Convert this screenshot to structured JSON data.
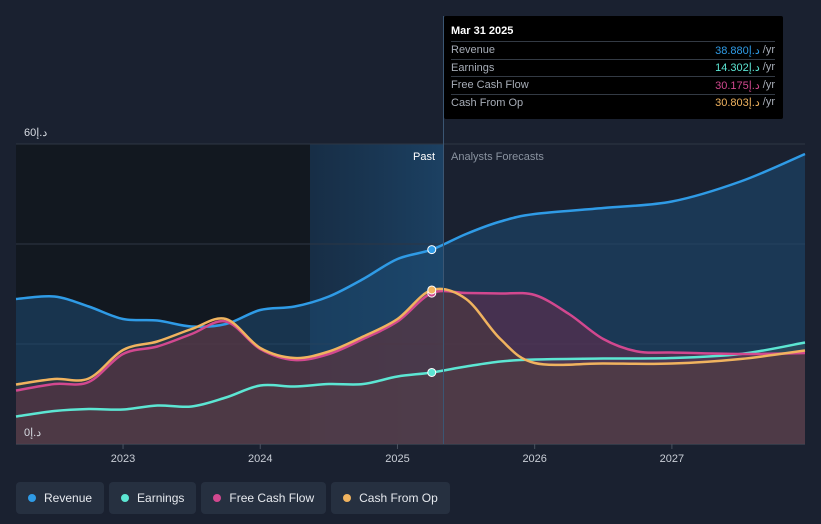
{
  "chart_data": {
    "type": "area",
    "title": "",
    "y_axis": {
      "max_label": "60د.إ",
      "min_label": "0د.إ",
      "ylim": [
        0,
        60
      ]
    },
    "x_axis": {
      "ticks": [
        "2023",
        "2024",
        "2025",
        "2026",
        "2027"
      ],
      "xlim": [
        2022.22,
        2027.97
      ]
    },
    "past_start": 2024.23,
    "divider_x": 2025.25,
    "labels": {
      "past": "Past",
      "forecast": "Analysts Forecasts"
    },
    "series": [
      {
        "name": "Revenue",
        "color": "#2f9be6",
        "points": [
          [
            2022.22,
            29
          ],
          [
            2022.5,
            29.5
          ],
          [
            2022.75,
            27.5
          ],
          [
            2023.0,
            25
          ],
          [
            2023.25,
            24.7
          ],
          [
            2023.5,
            23.5
          ],
          [
            2023.75,
            24
          ],
          [
            2024.0,
            26.8
          ],
          [
            2024.25,
            27.5
          ],
          [
            2024.5,
            29.5
          ],
          [
            2024.75,
            33
          ],
          [
            2025.0,
            37
          ],
          [
            2025.25,
            38.88
          ],
          [
            2025.5,
            42
          ],
          [
            2025.75,
            44.5
          ],
          [
            2026.0,
            46
          ],
          [
            2026.5,
            47.2
          ],
          [
            2027.0,
            48.5
          ],
          [
            2027.5,
            52.5
          ],
          [
            2027.97,
            58
          ]
        ]
      },
      {
        "name": "Earnings",
        "color": "#5ce6d3",
        "points": [
          [
            2022.22,
            5.5
          ],
          [
            2022.5,
            6.6
          ],
          [
            2022.75,
            7
          ],
          [
            2023.0,
            6.9
          ],
          [
            2023.25,
            7.7
          ],
          [
            2023.5,
            7.5
          ],
          [
            2023.75,
            9.3
          ],
          [
            2024.0,
            11.7
          ],
          [
            2024.25,
            11.5
          ],
          [
            2024.5,
            12
          ],
          [
            2024.75,
            12
          ],
          [
            2025.0,
            13.5
          ],
          [
            2025.25,
            14.302
          ],
          [
            2025.5,
            15.5
          ],
          [
            2025.75,
            16.5
          ],
          [
            2026.0,
            16.9
          ],
          [
            2026.5,
            17.1
          ],
          [
            2027.0,
            17.2
          ],
          [
            2027.5,
            18
          ],
          [
            2027.97,
            20.3
          ]
        ]
      },
      {
        "name": "Free Cash Flow",
        "color": "#d2488f",
        "points": [
          [
            2022.22,
            10.7
          ],
          [
            2022.5,
            12
          ],
          [
            2022.75,
            12.4
          ],
          [
            2023.0,
            18
          ],
          [
            2023.25,
            19.5
          ],
          [
            2023.5,
            22
          ],
          [
            2023.75,
            24.5
          ],
          [
            2024.0,
            19
          ],
          [
            2024.25,
            16.8
          ],
          [
            2024.5,
            18
          ],
          [
            2024.75,
            21
          ],
          [
            2025.0,
            24.5
          ],
          [
            2025.25,
            30.175
          ],
          [
            2025.5,
            30.2
          ],
          [
            2025.75,
            30.1
          ],
          [
            2026.0,
            29.8
          ],
          [
            2026.25,
            26
          ],
          [
            2026.5,
            21
          ],
          [
            2026.75,
            18.5
          ],
          [
            2027.0,
            18.3
          ],
          [
            2027.5,
            18
          ],
          [
            2027.97,
            18.2
          ]
        ]
      },
      {
        "name": "Cash From Op",
        "color": "#f0b35f",
        "points": [
          [
            2022.22,
            11.9
          ],
          [
            2022.5,
            13
          ],
          [
            2022.75,
            13.1
          ],
          [
            2023.0,
            18.8
          ],
          [
            2023.25,
            20.5
          ],
          [
            2023.5,
            23
          ],
          [
            2023.75,
            25
          ],
          [
            2024.0,
            19.2
          ],
          [
            2024.25,
            17.2
          ],
          [
            2024.5,
            18.5
          ],
          [
            2024.75,
            21.5
          ],
          [
            2025.0,
            25
          ],
          [
            2025.25,
            30.803
          ],
          [
            2025.5,
            29
          ],
          [
            2025.75,
            21
          ],
          [
            2026.0,
            16.2
          ],
          [
            2026.5,
            16.1
          ],
          [
            2027.0,
            16.1
          ],
          [
            2027.5,
            17
          ],
          [
            2027.97,
            18.7
          ]
        ]
      }
    ],
    "legend_position": "bottom-left"
  },
  "tooltip": {
    "date": "Mar 31 2025",
    "rows": [
      {
        "name": "Revenue",
        "value": "38.880د.إ",
        "unit": "/yr",
        "color": "#2f9be6"
      },
      {
        "name": "Earnings",
        "value": "14.302د.إ",
        "unit": "/yr",
        "color": "#5ce6d3"
      },
      {
        "name": "Free Cash Flow",
        "value": "30.175د.إ",
        "unit": "/yr",
        "color": "#d2488f"
      },
      {
        "name": "Cash From Op",
        "value": "30.803د.إ",
        "unit": "/yr",
        "color": "#f0b35f"
      }
    ]
  },
  "legend": [
    {
      "label": "Revenue",
      "color": "#2f9be6"
    },
    {
      "label": "Earnings",
      "color": "#5ce6d3"
    },
    {
      "label": "Free Cash Flow",
      "color": "#d2488f"
    },
    {
      "label": "Cash From Op",
      "color": "#f0b35f"
    }
  ]
}
